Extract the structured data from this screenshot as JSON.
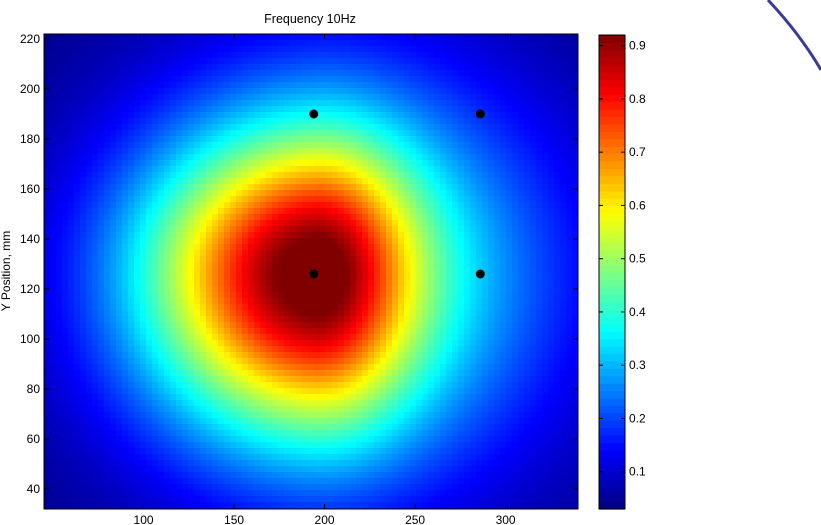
{
  "chart_data": {
    "type": "heatmap",
    "title": "Frequency 10Hz",
    "xlabel": "",
    "ylabel": "Y Position, mm",
    "xlim": [
      45,
      340
    ],
    "ylim": [
      32,
      222
    ],
    "x_ticks": [
      100,
      150,
      200,
      250,
      300
    ],
    "y_ticks": [
      40,
      60,
      80,
      100,
      120,
      140,
      160,
      180,
      200,
      220
    ],
    "grid": false,
    "colormap": "jet",
    "colorbar": {
      "min": 0.03,
      "max": 0.92,
      "ticks": [
        0.1,
        0.2,
        0.3,
        0.4,
        0.5,
        0.6,
        0.7,
        0.8,
        0.9
      ]
    },
    "points": [
      {
        "x": 194,
        "y": 126
      },
      {
        "x": 194,
        "y": 190
      },
      {
        "x": 286,
        "y": 126
      },
      {
        "x": 286,
        "y": 190
      }
    ],
    "peak": {
      "x": 194,
      "y": 126,
      "value": 0.92
    }
  },
  "colors": {
    "background": "#ffffff",
    "decor_arc": "#3a3a9e",
    "marker": "#000000"
  }
}
